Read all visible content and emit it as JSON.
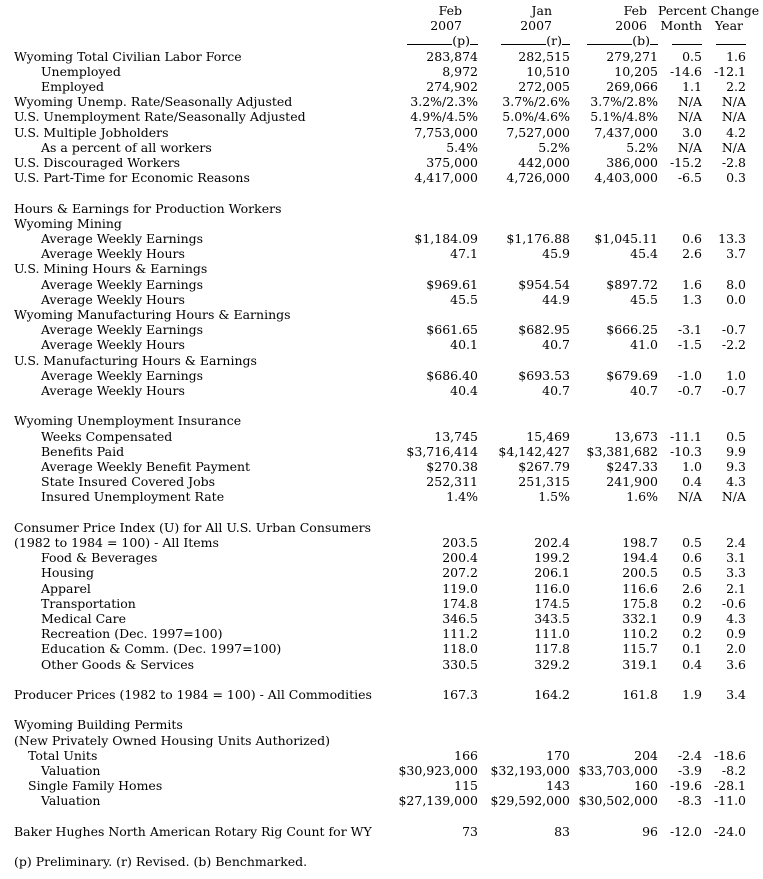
{
  "page": {
    "background": "#ffffff",
    "text_color": "#000000"
  },
  "header": {
    "period_columns": [
      {
        "line1": "Feb",
        "line2": "2007",
        "mark": "(p)"
      },
      {
        "line1": "Jan",
        "line2": "2007",
        "mark": "(r)"
      },
      {
        "line1": "Feb",
        "line2": "2006",
        "mark": "(b)"
      }
    ],
    "change_title": "Percent Change",
    "change_sub_month": "Month",
    "change_sub_year": "Year"
  },
  "table": {
    "rows": [
      {
        "type": "data",
        "indent": 0,
        "label": "Wyoming Total Civilian Labor Force",
        "values": [
          "283,874",
          "282,515",
          "279,271",
          "0.5",
          "1.6"
        ]
      },
      {
        "type": "data",
        "indent": 2,
        "label": "Unemployed",
        "values": [
          "8,972",
          "10,510",
          "10,205",
          "-14.6",
          "-12.1"
        ]
      },
      {
        "type": "data",
        "indent": 2,
        "label": "Employed",
        "values": [
          "274,902",
          "272,005",
          "269,066",
          "1.1",
          "2.2"
        ]
      },
      {
        "type": "data",
        "indent": 0,
        "label": "Wyoming Unemp. Rate/Seasonally Adjusted",
        "values": [
          "3.2%/2.3%",
          "3.7%/2.6%",
          "3.7%/2.8%",
          "N/A",
          "N/A"
        ]
      },
      {
        "type": "data",
        "indent": 0,
        "label": "U.S. Unemployment Rate/Seasonally Adjusted",
        "values": [
          "4.9%/4.5%",
          "5.0%/4.6%",
          "5.1%/4.8%",
          "N/A",
          "N/A"
        ]
      },
      {
        "type": "data",
        "indent": 0,
        "label": "U.S. Multiple Jobholders",
        "values": [
          "7,753,000",
          "7,527,000",
          "7,437,000",
          "3.0",
          "4.2"
        ]
      },
      {
        "type": "data",
        "indent": 2,
        "label": "As a percent of all workers",
        "values": [
          "5.4%",
          "5.2%",
          "5.2%",
          "N/A",
          "N/A"
        ]
      },
      {
        "type": "data",
        "indent": 0,
        "label": "U.S. Discouraged Workers",
        "values": [
          "375,000",
          "442,000",
          "386,000",
          "-15.2",
          "-2.8"
        ]
      },
      {
        "type": "data",
        "indent": 0,
        "label": "U.S. Part-Time for Economic Reasons",
        "values": [
          "4,417,000",
          "4,726,000",
          "4,403,000",
          "-6.5",
          "0.3"
        ]
      },
      {
        "type": "blank"
      },
      {
        "type": "section",
        "indent": 0,
        "label": "Hours & Earnings for Production Workers"
      },
      {
        "type": "section",
        "indent": 0,
        "label": "Wyoming Mining"
      },
      {
        "type": "data",
        "indent": 2,
        "label": "Average Weekly Earnings",
        "values": [
          "$1,184.09",
          "$1,176.88",
          "$1,045.11",
          "0.6",
          "13.3"
        ]
      },
      {
        "type": "data",
        "indent": 2,
        "label": "Average Weekly Hours",
        "values": [
          "47.1",
          "45.9",
          "45.4",
          "2.6",
          "3.7"
        ]
      },
      {
        "type": "section",
        "indent": 0,
        "label": "U.S. Mining Hours & Earnings"
      },
      {
        "type": "data",
        "indent": 2,
        "label": "Average Weekly Earnings",
        "values": [
          "$969.61",
          "$954.54",
          "$897.72",
          "1.6",
          "8.0"
        ]
      },
      {
        "type": "data",
        "indent": 2,
        "label": "Average Weekly Hours",
        "values": [
          "45.5",
          "44.9",
          "45.5",
          "1.3",
          "0.0"
        ]
      },
      {
        "type": "section",
        "indent": 0,
        "label": "Wyoming Manufacturing Hours & Earnings"
      },
      {
        "type": "data",
        "indent": 2,
        "label": "Average Weekly Earnings",
        "values": [
          "$661.65",
          "$682.95",
          "$666.25",
          "-3.1",
          "-0.7"
        ]
      },
      {
        "type": "data",
        "indent": 2,
        "label": "Average Weekly Hours",
        "values": [
          "40.1",
          "40.7",
          "41.0",
          "-1.5",
          "-2.2"
        ]
      },
      {
        "type": "section",
        "indent": 0,
        "label": "U.S. Manufacturing Hours & Earnings"
      },
      {
        "type": "data",
        "indent": 2,
        "label": "Average Weekly Earnings",
        "values": [
          "$686.40",
          "$693.53",
          "$679.69",
          "-1.0",
          "1.0"
        ]
      },
      {
        "type": "data",
        "indent": 2,
        "label": "Average Weekly Hours",
        "values": [
          "40.4",
          "40.7",
          "40.7",
          "-0.7",
          "-0.7"
        ]
      },
      {
        "type": "blank"
      },
      {
        "type": "section",
        "indent": 0,
        "label": "Wyoming Unemployment Insurance"
      },
      {
        "type": "data",
        "indent": 2,
        "label": "Weeks Compensated",
        "values": [
          "13,745",
          "15,469",
          "13,673",
          "-11.1",
          "0.5"
        ]
      },
      {
        "type": "data",
        "indent": 2,
        "label": "Benefits Paid",
        "values": [
          "$3,716,414",
          "$4,142,427",
          "$3,381,682",
          "-10.3",
          "9.9"
        ]
      },
      {
        "type": "data",
        "indent": 2,
        "label": "Average Weekly Benefit Payment",
        "values": [
          "$270.38",
          "$267.79",
          "$247.33",
          "1.0",
          "9.3"
        ]
      },
      {
        "type": "data",
        "indent": 2,
        "label": "State Insured Covered Jobs",
        "values": [
          "252,311",
          "251,315",
          "241,900",
          "0.4",
          "4.3"
        ]
      },
      {
        "type": "data",
        "indent": 2,
        "label": "Insured Unemployment Rate",
        "values": [
          "1.4%",
          "1.5%",
          "1.6%",
          "N/A",
          "N/A"
        ]
      },
      {
        "type": "blank"
      },
      {
        "type": "section",
        "indent": 0,
        "label": "Consumer Price Index (U) for All U.S. Urban Consumers"
      },
      {
        "type": "data",
        "indent": 0,
        "label": "(1982 to 1984 = 100) - All Items",
        "values": [
          "203.5",
          "202.4",
          "198.7",
          "0.5",
          "2.4"
        ]
      },
      {
        "type": "data",
        "indent": 2,
        "label": "Food & Beverages",
        "values": [
          "200.4",
          "199.2",
          "194.4",
          "0.6",
          "3.1"
        ]
      },
      {
        "type": "data",
        "indent": 2,
        "label": "Housing",
        "values": [
          "207.2",
          "206.1",
          "200.5",
          "0.5",
          "3.3"
        ]
      },
      {
        "type": "data",
        "indent": 2,
        "label": "Apparel",
        "values": [
          "119.0",
          "116.0",
          "116.6",
          "2.6",
          "2.1"
        ]
      },
      {
        "type": "data",
        "indent": 2,
        "label": "Transportation",
        "values": [
          "174.8",
          "174.5",
          "175.8",
          "0.2",
          "-0.6"
        ]
      },
      {
        "type": "data",
        "indent": 2,
        "label": "Medical Care",
        "values": [
          "346.5",
          "343.5",
          "332.1",
          "0.9",
          "4.3"
        ]
      },
      {
        "type": "data",
        "indent": 2,
        "label": "Recreation (Dec. 1997=100)",
        "values": [
          "111.2",
          "111.0",
          "110.2",
          "0.2",
          "0.9"
        ]
      },
      {
        "type": "data",
        "indent": 2,
        "label": "Education & Comm. (Dec. 1997=100)",
        "values": [
          "118.0",
          "117.8",
          "115.7",
          "0.1",
          "2.0"
        ]
      },
      {
        "type": "data",
        "indent": 2,
        "label": "Other Goods & Services",
        "values": [
          "330.5",
          "329.2",
          "319.1",
          "0.4",
          "3.6"
        ]
      },
      {
        "type": "blank"
      },
      {
        "type": "data",
        "indent": 0,
        "label": "Producer Prices (1982 to 1984 = 100) - All Commodities",
        "values": [
          "167.3",
          "164.2",
          "161.8",
          "1.9",
          "3.4"
        ]
      },
      {
        "type": "blank"
      },
      {
        "type": "section",
        "indent": 0,
        "label": "Wyoming Building Permits"
      },
      {
        "type": "section",
        "indent": 0,
        "label": "(New Privately Owned Housing Units Authorized)"
      },
      {
        "type": "data",
        "indent": 1,
        "label": "Total Units",
        "values": [
          "166",
          "170",
          "204",
          "-2.4",
          "-18.6"
        ]
      },
      {
        "type": "data",
        "indent": 2,
        "label": "Valuation",
        "values": [
          "$30,923,000",
          "$32,193,000",
          "$33,703,000",
          "-3.9",
          "-8.2"
        ]
      },
      {
        "type": "data",
        "indent": 1,
        "label": "Single Family Homes",
        "values": [
          "115",
          "143",
          "160",
          "-19.6",
          "-28.1"
        ]
      },
      {
        "type": "data",
        "indent": 2,
        "label": "Valuation",
        "values": [
          "$27,139,000",
          "$29,592,000",
          "$30,502,000",
          "-8.3",
          "-11.0"
        ]
      },
      {
        "type": "blank"
      },
      {
        "type": "data",
        "indent": 0,
        "label": "Baker Hughes North American Rotary Rig Count for WY",
        "values": [
          "73",
          "83",
          "96",
          "-12.0",
          "-24.0"
        ]
      }
    ]
  },
  "footnote": "(p) Preliminary. (r) Revised. (b) Benchmarked."
}
